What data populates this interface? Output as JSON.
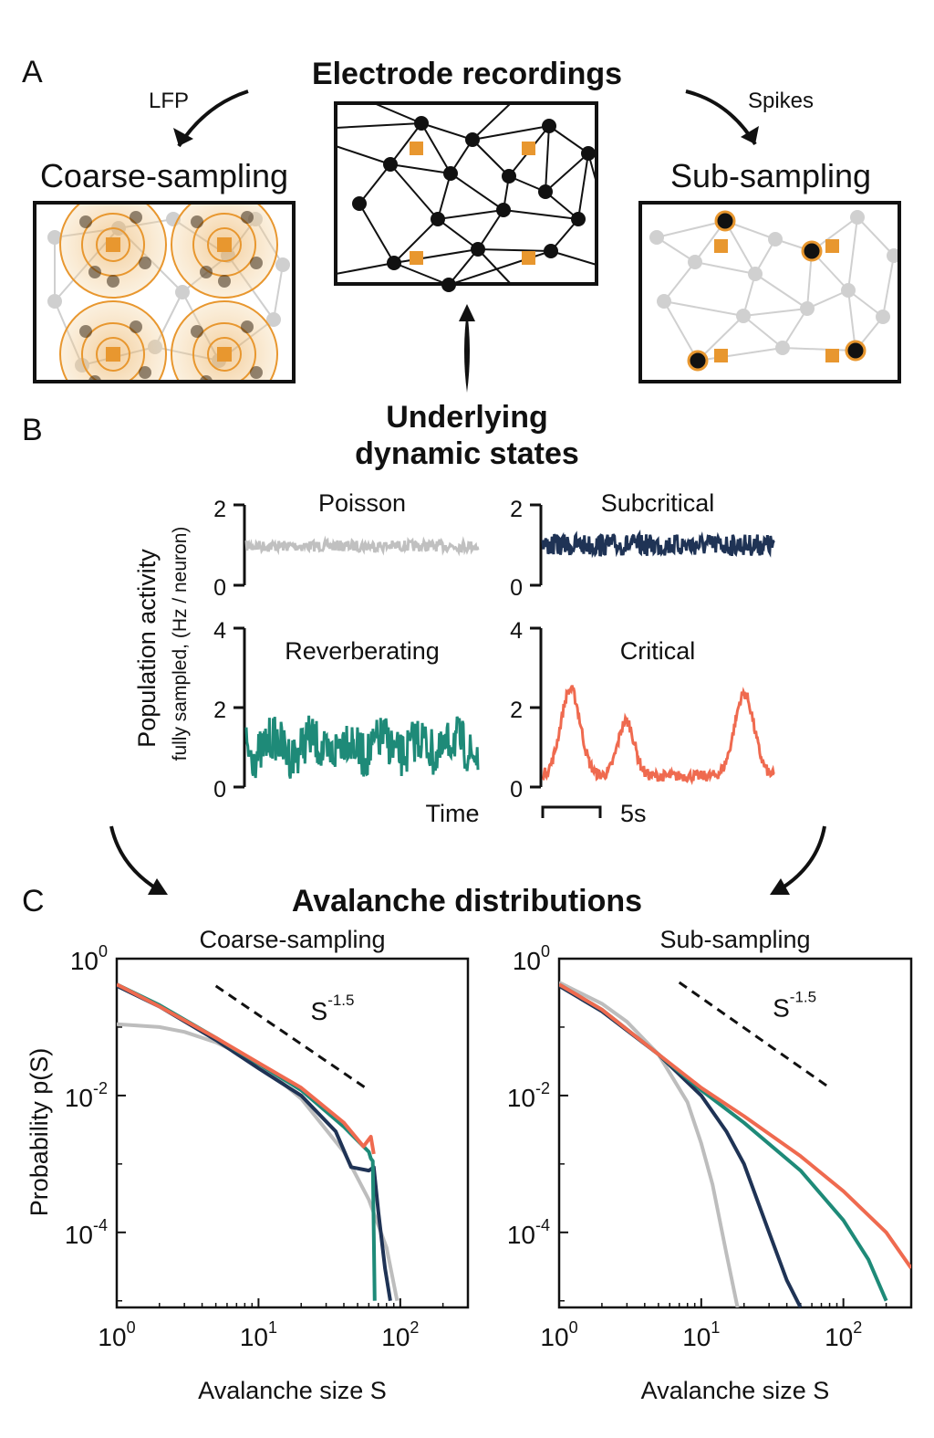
{
  "panel_a": {
    "letter": "A",
    "title": "Electrode recordings",
    "left_arrow_label": "LFP",
    "right_arrow_label": "Spikes",
    "left_box_title": "Coarse-sampling",
    "right_box_title": "Sub-sampling",
    "bottom_label_line1": "Underlying",
    "bottom_label_line2": "dynamic states"
  },
  "panel_b": {
    "letter": "B",
    "ylabel_line1": "Population activity",
    "ylabel_line2": "fully sampled, (Hz / neuron)",
    "time_label": "Time",
    "scale_label": "5s",
    "subplots": [
      {
        "title": "Poisson",
        "ymax_label": "2",
        "ymin_label": "0",
        "color": "#c0c0c0"
      },
      {
        "title": "Subcritical",
        "ymax_label": "2",
        "ymin_label": "0",
        "color": "#1f3355"
      },
      {
        "title": "Reverberating",
        "ymax_label": "4",
        "ymid_label": "2",
        "ymin_label": "0",
        "color": "#1e8a78"
      },
      {
        "title": "Critical",
        "ymax_label": "4",
        "ymid_label": "2",
        "ymin_label": "0",
        "color": "#ef6a4f"
      }
    ]
  },
  "panel_c": {
    "letter": "C",
    "title": "Avalanche distributions",
    "ylabel": "Probability p(S)",
    "colors": {
      "poisson": "#bdbdbd",
      "subcritical": "#1f3355",
      "reverberating": "#1e8a78",
      "critical": "#ef6a4f"
    }
  },
  "chart_data": [
    {
      "type": "line",
      "title": "Coarse-sampling",
      "xlabel": "Avalanche size S",
      "ylabel": "Probability p(S)",
      "xscale": "log",
      "yscale": "log",
      "xlim": [
        1,
        300
      ],
      "ylim": [
        8e-06,
        1
      ],
      "xticks": [
        {
          "base": "10",
          "exp": "0"
        },
        {
          "base": "10",
          "exp": "1"
        },
        {
          "base": "10",
          "exp": "2"
        }
      ],
      "yticks": [
        {
          "base": "10",
          "exp": "0"
        },
        {
          "base": "10",
          "exp": "-2"
        },
        {
          "base": "10",
          "exp": "-4"
        }
      ],
      "annotation": {
        "base": "S",
        "exp": "-1.5"
      },
      "reference_line": {
        "x": [
          5,
          60
        ],
        "y": [
          0.4,
          0.012
        ]
      },
      "series": [
        {
          "key": "poisson",
          "x": [
            1,
            2,
            3,
            5,
            10,
            20,
            40,
            60,
            80,
            95
          ],
          "y": [
            0.11,
            0.1,
            0.085,
            0.06,
            0.03,
            0.009,
            0.0015,
            0.0003,
            6e-05,
            1e-05
          ]
        },
        {
          "key": "subcritical",
          "x": [
            1,
            2,
            5,
            10,
            20,
            35,
            45,
            60,
            65,
            70,
            78,
            85
          ],
          "y": [
            0.4,
            0.2,
            0.065,
            0.025,
            0.01,
            0.003,
            0.0009,
            0.0008,
            0.0009,
            0.0002,
            3e-05,
            1e-05
          ]
        },
        {
          "key": "reverberating",
          "x": [
            1,
            2,
            5,
            10,
            20,
            40,
            60,
            62,
            64,
            66
          ],
          "y": [
            0.42,
            0.21,
            0.07,
            0.029,
            0.012,
            0.0035,
            0.0015,
            0.0012,
            0.0011,
            1e-05
          ]
        },
        {
          "key": "critical",
          "x": [
            1,
            2,
            5,
            10,
            20,
            40,
            55,
            62,
            65
          ],
          "y": [
            0.42,
            0.2,
            0.07,
            0.03,
            0.013,
            0.004,
            0.0018,
            0.0025,
            0.0014
          ]
        }
      ]
    },
    {
      "type": "line",
      "title": "Sub-sampling",
      "xlabel": "Avalanche size S",
      "ylabel": "",
      "xscale": "log",
      "yscale": "log",
      "xlim": [
        1,
        300
      ],
      "ylim": [
        8e-06,
        1
      ],
      "xticks": [
        {
          "base": "10",
          "exp": "0"
        },
        {
          "base": "10",
          "exp": "1"
        },
        {
          "base": "10",
          "exp": "2"
        }
      ],
      "yticks": [
        {
          "base": "10",
          "exp": "0"
        },
        {
          "base": "10",
          "exp": "-2"
        },
        {
          "base": "10",
          "exp": "-4"
        }
      ],
      "annotation": {
        "base": "S",
        "exp": "-1.5"
      },
      "reference_line": {
        "x": [
          7,
          80
        ],
        "y": [
          0.45,
          0.013
        ]
      },
      "series": [
        {
          "key": "poisson",
          "x": [
            1,
            2,
            3,
            5,
            8,
            10,
            12,
            15,
            18
          ],
          "y": [
            0.45,
            0.22,
            0.12,
            0.04,
            0.008,
            0.002,
            0.0005,
            5e-05,
            8e-06
          ]
        },
        {
          "key": "subcritical",
          "x": [
            1,
            2,
            5,
            10,
            15,
            20,
            30,
            40,
            50
          ],
          "y": [
            0.4,
            0.17,
            0.04,
            0.01,
            0.003,
            0.001,
            0.0001,
            2e-05,
            8e-06
          ]
        },
        {
          "key": "reverberating",
          "x": [
            1,
            2,
            5,
            10,
            20,
            50,
            100,
            150,
            200
          ],
          "y": [
            0.42,
            0.18,
            0.04,
            0.012,
            0.004,
            0.0008,
            0.00015,
            4e-05,
            1e-05
          ]
        },
        {
          "key": "critical",
          "x": [
            1,
            2,
            5,
            10,
            20,
            50,
            100,
            200,
            300
          ],
          "y": [
            0.42,
            0.18,
            0.04,
            0.013,
            0.005,
            0.0013,
            0.0004,
            0.0001,
            3e-05
          ]
        }
      ]
    }
  ]
}
